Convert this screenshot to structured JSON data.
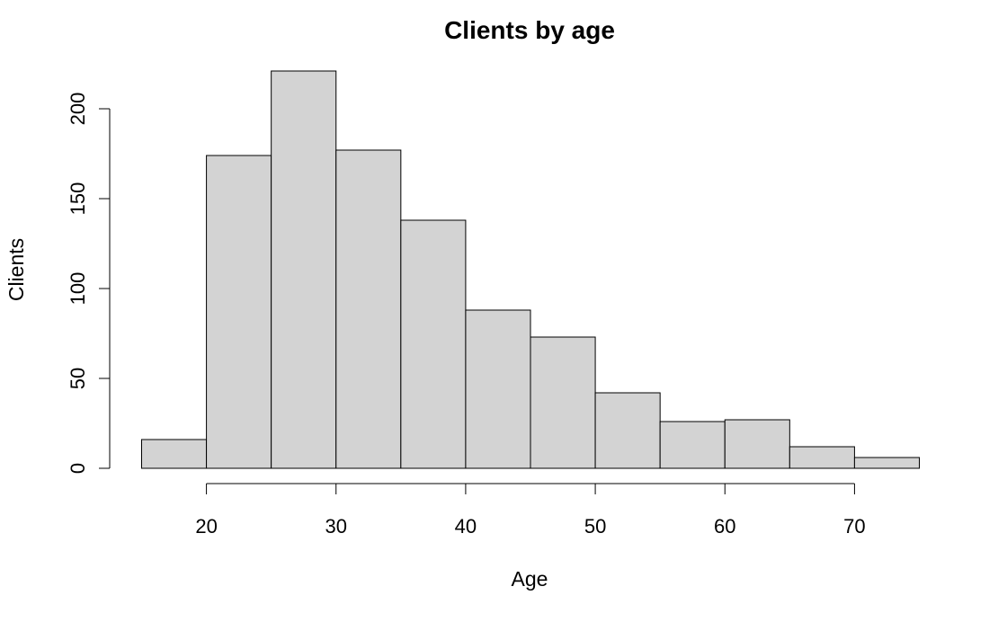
{
  "chart_data": {
    "type": "bar",
    "title": "Clients by age",
    "xlabel": "Age",
    "ylabel": "Clients",
    "bins": [
      {
        "x0": 15,
        "x1": 20,
        "count": 16
      },
      {
        "x0": 20,
        "x1": 25,
        "count": 174
      },
      {
        "x0": 25,
        "x1": 30,
        "count": 221
      },
      {
        "x0": 30,
        "x1": 35,
        "count": 177
      },
      {
        "x0": 35,
        "x1": 40,
        "count": 138
      },
      {
        "x0": 40,
        "x1": 45,
        "count": 88
      },
      {
        "x0": 45,
        "x1": 50,
        "count": 73
      },
      {
        "x0": 50,
        "x1": 55,
        "count": 42
      },
      {
        "x0": 55,
        "x1": 60,
        "count": 26
      },
      {
        "x0": 60,
        "x1": 65,
        "count": 27
      },
      {
        "x0": 65,
        "x1": 70,
        "count": 12
      },
      {
        "x0": 70,
        "x1": 75,
        "count": 6
      }
    ],
    "x_ticks": [
      20,
      30,
      40,
      50,
      60,
      70
    ],
    "y_ticks": [
      0,
      50,
      100,
      150,
      200
    ],
    "xlim": [
      15,
      75
    ],
    "ylim": [
      0,
      221
    ],
    "bar_color": "#d3d3d3",
    "grid": false,
    "legend": "none"
  }
}
